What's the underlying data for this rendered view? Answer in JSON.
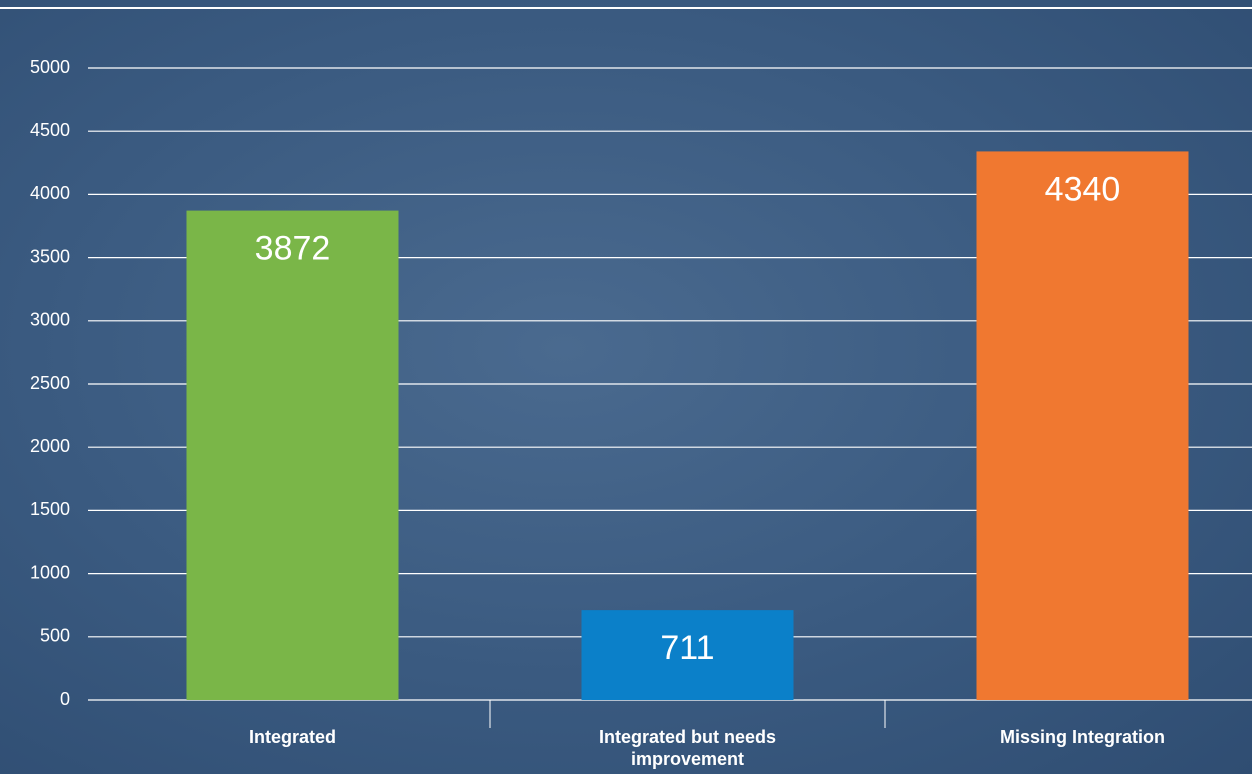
{
  "chart_data": {
    "type": "bar",
    "categories": [
      "Integrated",
      "Integrated but needs improvement",
      "Missing Integration"
    ],
    "values": [
      3872,
      711,
      4340
    ],
    "colors": [
      "#7ab648",
      "#0b80c9",
      "#f07830"
    ],
    "ylim": [
      0,
      5000
    ],
    "yticks": [
      0,
      500,
      1000,
      1500,
      2000,
      2500,
      3000,
      3500,
      4000,
      4500,
      5000
    ],
    "grid": true
  }
}
